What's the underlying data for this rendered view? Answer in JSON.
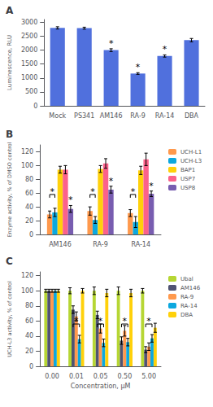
{
  "chart_data": [
    {
      "type": "bar",
      "title": "A",
      "categories": [
        "Mock",
        "PS341",
        "AM146",
        "RA-9",
        "RA-14",
        "DBA"
      ],
      "values": [
        2800,
        2790,
        2000,
        1160,
        1790,
        2360
      ],
      "errors": [
        40,
        35,
        50,
        30,
        40,
        60
      ],
      "ylabel": "Luminescence, RLU",
      "ylim": [
        0,
        3100
      ],
      "yticks": [
        0,
        500,
        1000,
        1500,
        2000,
        2500,
        3000
      ],
      "grid": false,
      "annotations": [
        {
          "text": "*",
          "category": "AM146"
        },
        {
          "text": "*",
          "category": "RA-9"
        },
        {
          "text": "*",
          "category": "RA-14"
        }
      ]
    },
    {
      "type": "bar",
      "title": "B",
      "categories": [
        "AM146",
        "RA-9",
        "RA-14"
      ],
      "series": [
        {
          "name": "UCH-L1",
          "values": [
            29,
            34,
            31
          ],
          "errors": [
            5,
            6,
            5
          ]
        },
        {
          "name": "UCH-L3",
          "values": [
            32,
            21,
            18
          ],
          "errors": [
            6,
            5,
            8
          ]
        },
        {
          "name": "BAP1",
          "values": [
            94,
            95,
            93
          ],
          "errors": [
            5,
            5,
            6
          ]
        },
        {
          "name": "USP7",
          "values": [
            94,
            103,
            109
          ],
          "errors": [
            6,
            7,
            9
          ]
        },
        {
          "name": "USP8",
          "values": [
            37,
            65,
            59
          ],
          "errors": [
            5,
            5,
            4
          ]
        }
      ],
      "ylabel": "Enzyme activity, % of DMSO control",
      "ylim": [
        0,
        130
      ],
      "yticks": [
        0,
        20,
        40,
        60,
        80,
        100,
        120
      ],
      "grid": false,
      "legend": "right",
      "annotations": [
        {
          "text": "*",
          "category": "AM146",
          "from": "UCH-L1",
          "to": "UCH-L3",
          "y": 58
        },
        {
          "text": "*",
          "category": "RA-9",
          "from": "UCH-L1",
          "to": "UCH-L3",
          "y": 58
        },
        {
          "text": "*",
          "category": "RA-14",
          "from": "UCH-L1",
          "to": "UCH-L3",
          "y": 58
        },
        {
          "text": "*",
          "category": "AM146",
          "series": "USP8"
        },
        {
          "text": "*",
          "category": "RA-9",
          "series": "USP8"
        },
        {
          "text": "*",
          "category": "RA-14",
          "series": "USP8"
        }
      ]
    },
    {
      "type": "bar",
      "title": "C",
      "categories": [
        "0.00",
        "0.01",
        "0.05",
        "0.50",
        "5.00"
      ],
      "series": [
        {
          "name": "Ubal",
          "values": [
            100,
            100,
            100,
            100,
            100
          ],
          "errors": [
            2,
            4,
            5,
            5,
            3
          ]
        },
        {
          "name": "AM146",
          "values": [
            100,
            75,
            68,
            34,
            22
          ],
          "errors": [
            2,
            5,
            5,
            5,
            4
          ]
        },
        {
          "name": "RA-9",
          "values": [
            100,
            66,
            50,
            47,
            26
          ],
          "errors": [
            2,
            6,
            6,
            7,
            5
          ]
        },
        {
          "name": "RA-14",
          "values": [
            100,
            36,
            31,
            32,
            37
          ],
          "errors": [
            2,
            5,
            5,
            5,
            5
          ]
        },
        {
          "name": "DBA",
          "values": [
            100,
            100,
            97,
            97,
            51
          ],
          "errors": [
            2,
            3,
            5,
            5,
            6
          ]
        }
      ],
      "ylabel": "UCH-L3 activity, % of control",
      "xlabel": "Concentration, µM",
      "ylim": [
        0,
        125
      ],
      "yticks": [
        0,
        20,
        40,
        60,
        80,
        100,
        120
      ],
      "grid": false,
      "legend": "right",
      "annotations": [
        {
          "text": "*",
          "category": "0.01",
          "from": "AM146",
          "to": "RA-14",
          "y": 56
        },
        {
          "text": "*",
          "category": "0.05",
          "from": "AM146",
          "to": "RA-14",
          "y": 56
        },
        {
          "text": "*",
          "category": "0.50",
          "from": "AM146",
          "to": "RA-14",
          "y": 56
        },
        {
          "text": "*",
          "category": "5.00",
          "from": "AM146",
          "to": "RA-14",
          "y": 56
        }
      ]
    }
  ]
}
